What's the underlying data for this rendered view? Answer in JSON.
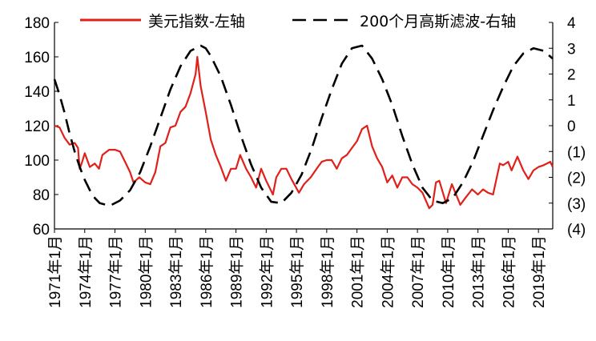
{
  "chart_data": {
    "type": "line",
    "title": "",
    "xlabel": "",
    "ylabel_left": "",
    "ylabel_right": "",
    "x_tick_labels": [
      "1971年1月",
      "1974年1月",
      "1977年1月",
      "1980年1月",
      "1983年1月",
      "1986年1月",
      "1989年1月",
      "1992年1月",
      "1995年1月",
      "1998年1月",
      "2001年1月",
      "2004年1月",
      "2007年1月",
      "2010年1月",
      "2013年1月",
      "2016年1月",
      "2019年1月"
    ],
    "x_range": [
      "1971-01",
      "2020-06"
    ],
    "y_left": {
      "ylim": [
        60,
        180
      ],
      "ticks": [
        "60",
        "80",
        "100",
        "120",
        "140",
        "160",
        "180"
      ]
    },
    "y_right": {
      "ylim": [
        -4,
        4
      ],
      "ticks": [
        "(4)",
        "(3)",
        "(2)",
        "(1)",
        "0",
        "1",
        "2",
        "3",
        "4"
      ]
    },
    "legend_position": "top",
    "grid": false,
    "series": [
      {
        "name": "美元指数-左轴",
        "axis": "left",
        "style": "solid",
        "color": "#e0201a",
        "points": [
          [
            "1971-01",
            120
          ],
          [
            "1971-07",
            119
          ],
          [
            "1972-01",
            113
          ],
          [
            "1972-07",
            109
          ],
          [
            "1973-01",
            110
          ],
          [
            "1973-05",
            107
          ],
          [
            "1973-07",
            95
          ],
          [
            "1973-10",
            99
          ],
          [
            "1974-01",
            104
          ],
          [
            "1974-07",
            96
          ],
          [
            "1975-01",
            98
          ],
          [
            "1975-06",
            95
          ],
          [
            "1975-10",
            103
          ],
          [
            "1976-06",
            106
          ],
          [
            "1977-01",
            106
          ],
          [
            "1977-07",
            105
          ],
          [
            "1978-01",
            99
          ],
          [
            "1978-07",
            93
          ],
          [
            "1978-11",
            87
          ],
          [
            "1979-06",
            90
          ],
          [
            "1980-01",
            87
          ],
          [
            "1980-07",
            86
          ],
          [
            "1981-01",
            93
          ],
          [
            "1981-07",
            108
          ],
          [
            "1982-01",
            110
          ],
          [
            "1982-07",
            119
          ],
          [
            "1983-01",
            120
          ],
          [
            "1983-07",
            128
          ],
          [
            "1984-01",
            131
          ],
          [
            "1984-07",
            139
          ],
          [
            "1985-01",
            150
          ],
          [
            "1985-03",
            160
          ],
          [
            "1985-07",
            143
          ],
          [
            "1986-01",
            128
          ],
          [
            "1986-07",
            112
          ],
          [
            "1987-01",
            103
          ],
          [
            "1987-07",
            96
          ],
          [
            "1988-01",
            88
          ],
          [
            "1988-07",
            95
          ],
          [
            "1989-01",
            95
          ],
          [
            "1989-06",
            103
          ],
          [
            "1990-01",
            95
          ],
          [
            "1990-07",
            90
          ],
          [
            "1991-01",
            84
          ],
          [
            "1991-07",
            95
          ],
          [
            "1992-01",
            88
          ],
          [
            "1992-09",
            80
          ],
          [
            "1993-01",
            90
          ],
          [
            "1993-07",
            95
          ],
          [
            "1994-01",
            95
          ],
          [
            "1994-07",
            89
          ],
          [
            "1995-04",
            81
          ],
          [
            "1995-10",
            86
          ],
          [
            "1996-06",
            90
          ],
          [
            "1997-01",
            95
          ],
          [
            "1997-07",
            99
          ],
          [
            "1998-01",
            100
          ],
          [
            "1998-07",
            100
          ],
          [
            "1999-01",
            95
          ],
          [
            "1999-07",
            101
          ],
          [
            "2000-01",
            103
          ],
          [
            "2000-07",
            107
          ],
          [
            "2001-01",
            111
          ],
          [
            "2001-07",
            118
          ],
          [
            "2002-01",
            120
          ],
          [
            "2002-07",
            108
          ],
          [
            "2003-01",
            101
          ],
          [
            "2003-07",
            96
          ],
          [
            "2004-01",
            87
          ],
          [
            "2004-07",
            91
          ],
          [
            "2005-01",
            84
          ],
          [
            "2005-07",
            90
          ],
          [
            "2006-01",
            90
          ],
          [
            "2006-07",
            86
          ],
          [
            "2007-01",
            84
          ],
          [
            "2007-07",
            81
          ],
          [
            "2008-03",
            72
          ],
          [
            "2008-07",
            74
          ],
          [
            "2008-11",
            87
          ],
          [
            "2009-03",
            88
          ],
          [
            "2009-11",
            75
          ],
          [
            "2010-06",
            86
          ],
          [
            "2011-04",
            74
          ],
          [
            "2011-10",
            78
          ],
          [
            "2012-06",
            83
          ],
          [
            "2013-01",
            80
          ],
          [
            "2013-07",
            83
          ],
          [
            "2014-01",
            81
          ],
          [
            "2014-07",
            80
          ],
          [
            "2015-03",
            98
          ],
          [
            "2015-07",
            97
          ],
          [
            "2016-01",
            99
          ],
          [
            "2016-05",
            94
          ],
          [
            "2016-12",
            102
          ],
          [
            "2017-07",
            94
          ],
          [
            "2018-01",
            89
          ],
          [
            "2018-07",
            94
          ],
          [
            "2019-01",
            96
          ],
          [
            "2019-07",
            97
          ],
          [
            "2020-03",
            99
          ],
          [
            "2020-06",
            96
          ]
        ]
      },
      {
        "name": "200个月高斯滤波-右轴",
        "axis": "right",
        "style": "dashed",
        "color": "#000000",
        "points": [
          [
            "1971-01",
            1.8
          ],
          [
            "1971-07",
            1.2
          ],
          [
            "1972-01",
            0.5
          ],
          [
            "1972-07",
            -0.3
          ],
          [
            "1973-01",
            -1.0
          ],
          [
            "1973-07",
            -1.6
          ],
          [
            "1974-01",
            -2.1
          ],
          [
            "1974-07",
            -2.5
          ],
          [
            "1975-01",
            -2.8
          ],
          [
            "1975-07",
            -3.0
          ],
          [
            "1976-07",
            -3.1
          ],
          [
            "1977-07",
            -2.9
          ],
          [
            "1978-07",
            -2.5
          ],
          [
            "1979-07",
            -1.8
          ],
          [
            "1980-07",
            -0.8
          ],
          [
            "1981-07",
            0.3
          ],
          [
            "1982-07",
            1.4
          ],
          [
            "1983-07",
            2.3
          ],
          [
            "1984-07",
            2.9
          ],
          [
            "1985-07",
            3.1
          ],
          [
            "1986-01",
            3.0
          ],
          [
            "1986-07",
            2.7
          ],
          [
            "1987-07",
            1.9
          ],
          [
            "1988-07",
            0.8
          ],
          [
            "1989-07",
            -0.4
          ],
          [
            "1990-07",
            -1.5
          ],
          [
            "1991-07",
            -2.4
          ],
          [
            "1992-07",
            -2.95
          ],
          [
            "1993-07",
            -3.0
          ],
          [
            "1994-07",
            -2.6
          ],
          [
            "1995-07",
            -1.9
          ],
          [
            "1996-07",
            -0.9
          ],
          [
            "1997-07",
            0.3
          ],
          [
            "1998-07",
            1.4
          ],
          [
            "1999-07",
            2.4
          ],
          [
            "2000-07",
            3.0
          ],
          [
            "2001-07",
            3.1
          ],
          [
            "2002-07",
            2.6
          ],
          [
            "2003-07",
            1.8
          ],
          [
            "2004-07",
            0.8
          ],
          [
            "2005-07",
            -0.4
          ],
          [
            "2006-07",
            -1.5
          ],
          [
            "2007-07",
            -2.4
          ],
          [
            "2008-07",
            -2.9
          ],
          [
            "2009-07",
            -3.0
          ],
          [
            "2010-07",
            -2.8
          ],
          [
            "2011-07",
            -2.2
          ],
          [
            "2012-07",
            -1.4
          ],
          [
            "2013-07",
            -0.4
          ],
          [
            "2014-07",
            0.6
          ],
          [
            "2015-07",
            1.5
          ],
          [
            "2016-07",
            2.3
          ],
          [
            "2017-07",
            2.8
          ],
          [
            "2018-07",
            3.0
          ],
          [
            "2019-07",
            2.9
          ],
          [
            "2020-06",
            2.6
          ]
        ]
      }
    ]
  }
}
